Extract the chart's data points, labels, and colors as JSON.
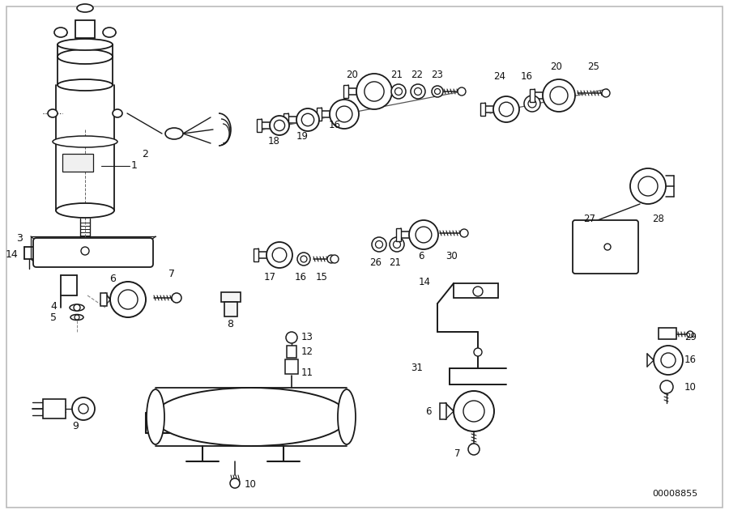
{
  "bg": "white",
  "lc": "#1a1a1a",
  "watermark": "00008855",
  "fig_width": 9.0,
  "fig_height": 6.35,
  "dpi": 100
}
